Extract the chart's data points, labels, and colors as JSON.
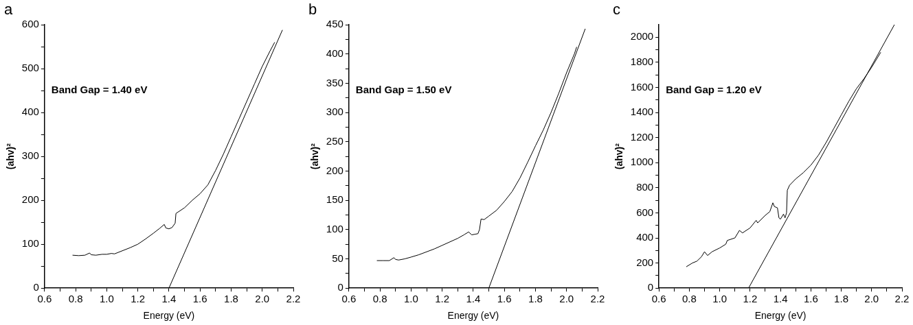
{
  "chart_data": [
    {
      "type": "line",
      "title": "a",
      "xlabel": "Energy (eV)",
      "ylabel": "(ahv)²",
      "annotations": [
        "Band Gap = 1.40 eV"
      ],
      "grid": false,
      "legend": false,
      "marker": "none",
      "line_style": "solid",
      "xlim": [
        0.6,
        2.2
      ],
      "ylim": [
        0,
        600
      ],
      "xticks": [
        0.6,
        {
          "value": 0.7,
          "label": null
        },
        0.8,
        {
          "value": 0.9,
          "label": null
        },
        {
          "value": 1.0,
          "label": "1.0"
        },
        {
          "value": 1.1,
          "label": null
        },
        1.2,
        {
          "value": 1.3,
          "label": null
        },
        1.4,
        {
          "value": 1.5,
          "label": null
        },
        1.6,
        {
          "value": 1.7,
          "label": null
        },
        1.8,
        {
          "value": 1.9,
          "label": null
        },
        {
          "value": 2.0,
          "label": "2.0"
        },
        {
          "value": 2.1,
          "label": null
        },
        2.2
      ],
      "yticks": [
        0,
        {
          "value": 50,
          "label": null
        },
        100,
        {
          "value": 150,
          "label": null
        },
        200,
        {
          "value": 250,
          "label": null
        },
        300,
        {
          "value": 350,
          "label": null
        },
        400,
        {
          "value": 450,
          "label": null
        },
        500,
        {
          "value": 550,
          "label": null
        },
        600
      ],
      "series": [
        {
          "color": "#000000",
          "x": [
            0.78,
            0.82,
            0.86,
            0.89,
            0.9,
            0.93,
            0.97,
            1.0,
            1.03,
            1.05,
            1.1,
            1.15,
            1.2,
            1.25,
            1.3,
            1.34,
            1.37,
            1.38,
            1.4,
            1.42,
            1.44,
            1.445,
            1.5,
            1.55,
            1.6,
            1.65,
            1.7,
            1.75,
            1.8,
            1.85,
            1.9,
            1.95,
            2.0,
            2.05,
            2.08
          ],
          "values": [
            75,
            74,
            75,
            80,
            76,
            75,
            77,
            77,
            79,
            78,
            85,
            92,
            100,
            112,
            125,
            136,
            145,
            137,
            135,
            138,
            148,
            170,
            183,
            200,
            215,
            235,
            268,
            305,
            345,
            385,
            425,
            465,
            505,
            540,
            560
          ]
        },
        {
          "color": "#000000",
          "x": [
            1.4,
            2.13
          ],
          "values": [
            0,
            588
          ]
        }
      ]
    },
    {
      "type": "line",
      "title": "b",
      "xlabel": "Energy (eV)",
      "ylabel": "(ahv)²",
      "annotations": [
        "Band Gap = 1.50 eV"
      ],
      "grid": false,
      "legend": false,
      "marker": "none",
      "line_style": "solid",
      "xlim": [
        0.6,
        2.2
      ],
      "ylim": [
        0,
        450
      ],
      "xticks": [
        0.6,
        {
          "value": 0.7,
          "label": null
        },
        0.8,
        {
          "value": 0.9,
          "label": null
        },
        {
          "value": 1.0,
          "label": "1.0"
        },
        {
          "value": 1.1,
          "label": null
        },
        1.2,
        {
          "value": 1.3,
          "label": null
        },
        1.4,
        {
          "value": 1.5,
          "label": null
        },
        1.6,
        {
          "value": 1.7,
          "label": null
        },
        1.8,
        {
          "value": 1.9,
          "label": null
        },
        {
          "value": 2.0,
          "label": "2.0"
        },
        {
          "value": 2.1,
          "label": null
        },
        2.2
      ],
      "yticks": [
        0,
        {
          "value": 25,
          "label": null
        },
        50,
        {
          "value": 75,
          "label": null
        },
        100,
        {
          "value": 125,
          "label": null
        },
        150,
        {
          "value": 175,
          "label": null
        },
        200,
        {
          "value": 225,
          "label": null
        },
        250,
        {
          "value": 275,
          "label": null
        },
        300,
        {
          "value": 325,
          "label": null
        },
        350,
        {
          "value": 375,
          "label": null
        },
        400,
        {
          "value": 425,
          "label": null
        },
        450
      ],
      "series": [
        {
          "color": "#000000",
          "x": [
            0.78,
            0.82,
            0.86,
            0.89,
            0.9,
            0.92,
            0.96,
            1.0,
            1.05,
            1.1,
            1.15,
            1.2,
            1.25,
            1.3,
            1.34,
            1.37,
            1.39,
            1.41,
            1.43,
            1.44,
            1.45,
            1.47,
            1.5,
            1.55,
            1.6,
            1.65,
            1.7,
            1.75,
            1.8,
            1.85,
            1.9,
            1.95,
            2.0,
            2.05,
            2.065
          ],
          "values": [
            47,
            47,
            47,
            52,
            49,
            48,
            50,
            53,
            57,
            62,
            67,
            73,
            79,
            85,
            91,
            96,
            91,
            92,
            93,
            100,
            118,
            117,
            123,
            133,
            148,
            165,
            188,
            215,
            243,
            270,
            300,
            333,
            368,
            400,
            412
          ]
        },
        {
          "color": "#000000",
          "x": [
            1.5,
            2.12
          ],
          "values": [
            0,
            443
          ]
        }
      ]
    },
    {
      "type": "line",
      "title": "c",
      "xlabel": "Energy (eV)",
      "ylabel": "(ahv)²",
      "annotations": [
        "Band Gap = 1.20 eV"
      ],
      "grid": false,
      "legend": false,
      "marker": "none",
      "line_style": "solid",
      "xlim": [
        0.6,
        2.2
      ],
      "ylim": [
        0,
        2100
      ],
      "xticks": [
        0.6,
        {
          "value": 0.7,
          "label": null
        },
        0.8,
        {
          "value": 0.9,
          "label": null
        },
        {
          "value": 1.0,
          "label": "1.0"
        },
        {
          "value": 1.1,
          "label": null
        },
        1.2,
        {
          "value": 1.3,
          "label": null
        },
        1.4,
        {
          "value": 1.5,
          "label": null
        },
        1.6,
        {
          "value": 1.7,
          "label": null
        },
        1.8,
        {
          "value": 1.9,
          "label": null
        },
        {
          "value": 2.0,
          "label": "2.0"
        },
        {
          "value": 2.1,
          "label": null
        },
        2.2
      ],
      "yticks": [
        0,
        {
          "value": 100,
          "label": null
        },
        200,
        {
          "value": 300,
          "label": null
        },
        400,
        {
          "value": 500,
          "label": null
        },
        600,
        {
          "value": 700,
          "label": null
        },
        800,
        {
          "value": 900,
          "label": null
        },
        1000,
        {
          "value": 1100,
          "label": null
        },
        1200,
        {
          "value": 1300,
          "label": null
        },
        1400,
        {
          "value": 1500,
          "label": null
        },
        1600,
        {
          "value": 1700,
          "label": null
        },
        1800,
        {
          "value": 1900,
          "label": null
        },
        2000
      ],
      "series": [
        {
          "color": "#000000",
          "x": [
            0.78,
            0.82,
            0.85,
            0.88,
            0.9,
            0.92,
            0.95,
            1.0,
            1.04,
            1.05,
            1.1,
            1.13,
            1.15,
            1.2,
            1.24,
            1.25,
            1.3,
            1.33,
            1.35,
            1.36,
            1.38,
            1.39,
            1.4,
            1.42,
            1.43,
            1.44,
            1.445,
            1.46,
            1.5,
            1.55,
            1.6,
            1.65,
            1.7,
            1.75,
            1.8,
            1.85,
            1.9,
            1.95,
            2.0,
            2.06
          ],
          "values": [
            170,
            200,
            215,
            250,
            290,
            260,
            290,
            320,
            350,
            380,
            400,
            460,
            440,
            480,
            540,
            520,
            580,
            610,
            680,
            650,
            640,
            560,
            550,
            590,
            560,
            600,
            780,
            820,
            870,
            920,
            980,
            1060,
            1160,
            1270,
            1380,
            1490,
            1590,
            1670,
            1760,
            1880
          ]
        },
        {
          "color": "#000000",
          "x": [
            1.19,
            2.15
          ],
          "values": [
            0,
            2100
          ]
        }
      ]
    }
  ]
}
